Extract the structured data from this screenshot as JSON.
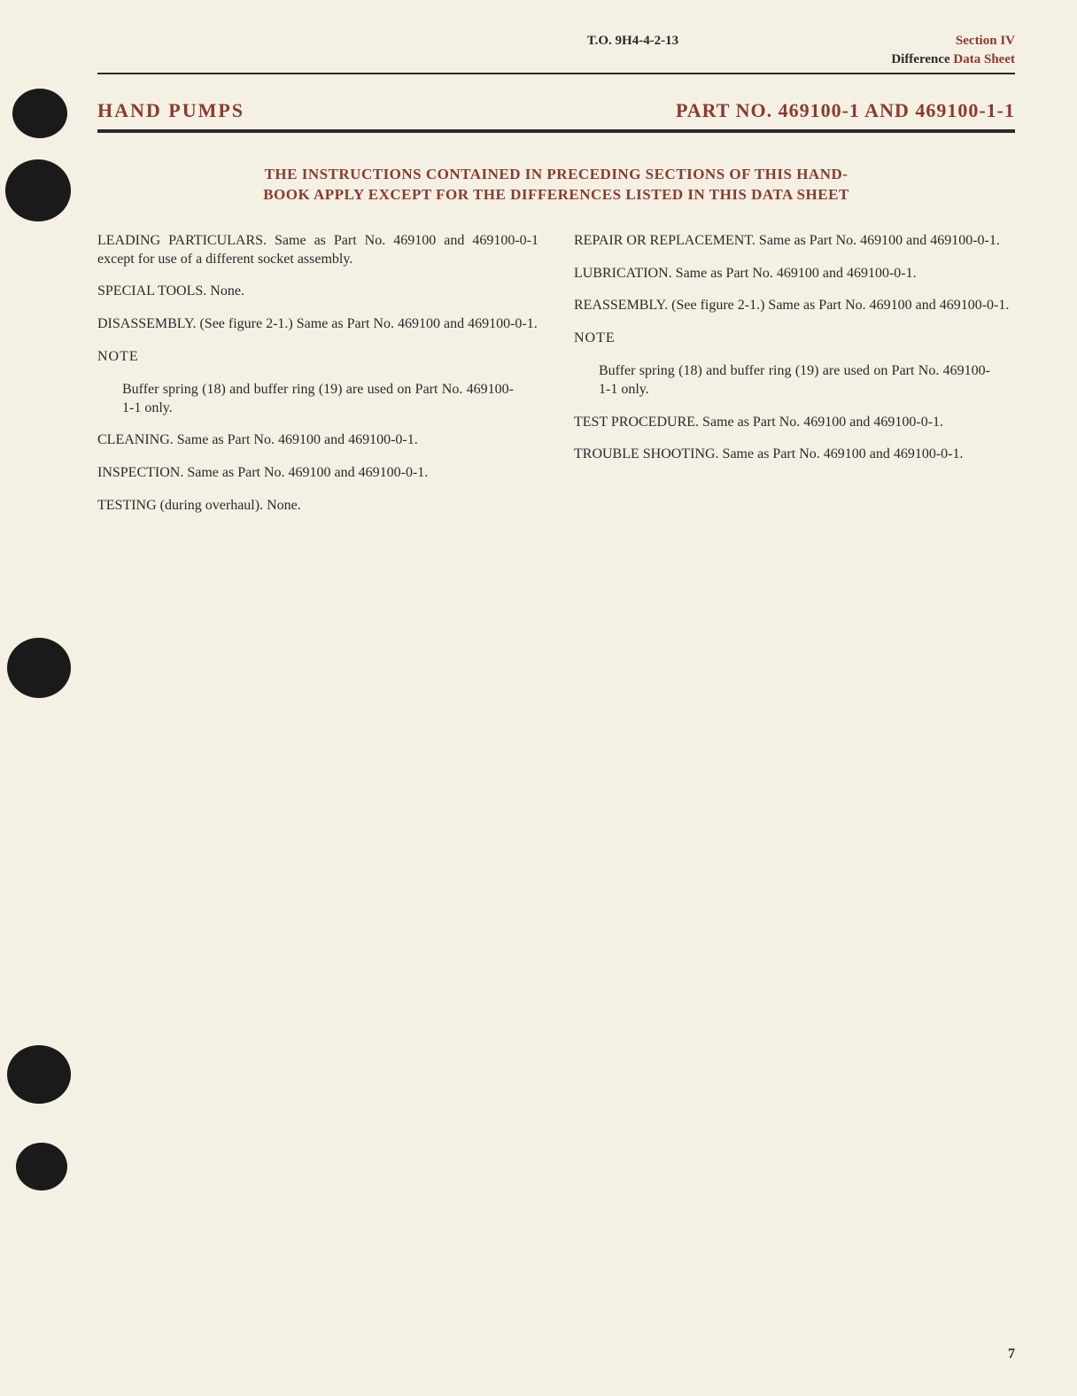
{
  "header": {
    "to_number": "T.O. 9H4-4-2-13",
    "section": "Section IV",
    "subtitle_diff": "Difference",
    "subtitle_data": " Data Sheet"
  },
  "title": {
    "left": "HAND  PUMPS",
    "right": "PART NO. 469100-1 AND 469100-1-1"
  },
  "notice": {
    "line1": "THE INSTRUCTIONS CONTAINED IN PRECEDING SECTIONS OF THIS HAND-",
    "line2": "BOOK APPLY EXCEPT FOR THE DIFFERENCES LISTED IN THIS DATA SHEET"
  },
  "left_col": {
    "leading": "LEADING PARTICULARS. Same as Part No. 469100 and 469100-0-1 except for use of a different socket assembly.",
    "special": "SPECIAL TOOLS. None.",
    "disassembly": "DISASSEMBLY. (See figure 2-1.) Same as Part No. 469100 and 469100-0-1.",
    "note_hdr": "NOTE",
    "note_body": "Buffer spring (18) and buffer ring (19) are used on Part No. 469100-1-1 only.",
    "cleaning": "CLEANING. Same as Part No. 469100 and 469100-0-1.",
    "inspection": "INSPECTION. Same as Part No. 469100 and 469100-0-1.",
    "testing": "TESTING (during overhaul). None."
  },
  "right_col": {
    "repair": "REPAIR OR REPLACEMENT. Same as Part No. 469100 and 469100-0-1.",
    "lubrication": "LUBRICATION. Same as Part No. 469100 and 469100-0-1.",
    "reassembly": "REASSEMBLY. (See figure 2-1.) Same as Part No. 469100 and 469100-0-1.",
    "note_hdr": "NOTE",
    "note_body": "Buffer spring (18) and buffer ring (19) are used on Part No. 469100-1-1 only.",
    "test_proc": "TEST PROCEDURE. Same as Part No. 469100 and 469100-0-1.",
    "trouble": "TROUBLE SHOOTING. Same as Part No. 469100 and 469100-0-1."
  },
  "page_number": "7"
}
